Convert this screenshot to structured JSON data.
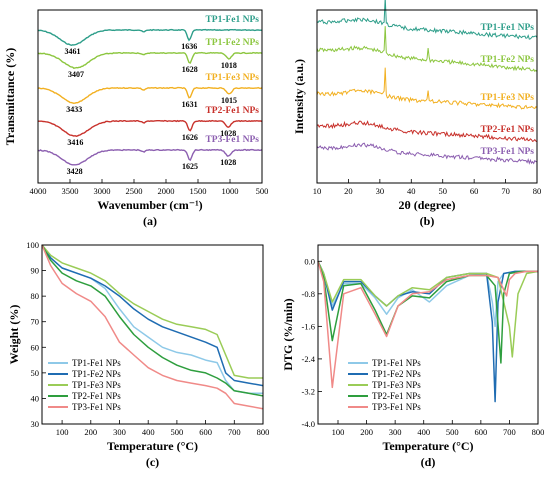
{
  "series_colors": {
    "TP1-Fe1 NPs": "#8EC9E8",
    "TP1-Fe2 NPs": "#1F6CB2",
    "TP1-Fe3 NPs": "#9ACC57",
    "TP2-Fe1 NPs": "#2E9E3E",
    "TP3-Fe1 NPs": "#F08A88"
  },
  "chart_data": [
    {
      "panel": "(a)",
      "type": "line",
      "xlabel": "Wavenumber (cm⁻¹)",
      "ylabel": "Transmittance (%)",
      "xlim": [
        4000,
        500
      ],
      "xticks": [
        "4000",
        "3500",
        "3000",
        "2500",
        "2000",
        "1500",
        "1000",
        "500"
      ],
      "y_ticks_shown": false,
      "series": [
        {
          "name": "TP1-Fe1 NPs",
          "color": "#2E9E8A",
          "peaks": [
            3461,
            1636
          ]
        },
        {
          "name": "TP1-Fe2 NPs",
          "color": "#8CC63F",
          "peaks": [
            3407,
            1628,
            1018
          ]
        },
        {
          "name": "TP1-Fe3 NPs",
          "color": "#F2B021",
          "peaks": [
            3433,
            1631,
            1015
          ]
        },
        {
          "name": "TP2-Fe1 NPs",
          "color": "#C8312B",
          "peaks": [
            3416,
            1626,
            1028
          ]
        },
        {
          "name": "TP3-Fe1 NPs",
          "color": "#8C5FB0",
          "peaks": [
            3428,
            1625,
            1028
          ]
        }
      ]
    },
    {
      "panel": "(b)",
      "type": "line",
      "xlabel": "2θ (degree)",
      "ylabel": "Intensity (a.u.)",
      "xlim": [
        10,
        80
      ],
      "xticks": [
        "10",
        "20",
        "30",
        "40",
        "50",
        "60",
        "70",
        "80"
      ],
      "y_ticks_shown": false,
      "series": [
        {
          "name": "TP1-Fe1 NPs",
          "color": "#2E9E8A",
          "sharp_peaks": [
            31.7
          ]
        },
        {
          "name": "TP1-Fe2 NPs",
          "color": "#8CC63F",
          "sharp_peaks": [
            31.7,
            45.4
          ]
        },
        {
          "name": "TP1-Fe3 NPs",
          "color": "#F2B021",
          "sharp_peaks": [
            31.7,
            45.4
          ]
        },
        {
          "name": "TP2-Fe1 NPs",
          "color": "#C8312B",
          "sharp_peaks": []
        },
        {
          "name": "TP3-Fe1 NPs",
          "color": "#8C5FB0",
          "sharp_peaks": []
        }
      ]
    },
    {
      "panel": "(c)",
      "type": "line",
      "xlabel": "Temperature (°C)",
      "ylabel": "Weight (%)",
      "xlim": [
        30,
        800
      ],
      "ylim": [
        30,
        100
      ],
      "xticks": [
        "100",
        "200",
        "300",
        "400",
        "500",
        "600",
        "700",
        "800"
      ],
      "yticks": [
        "30",
        "40",
        "50",
        "60",
        "70",
        "80",
        "90",
        "100"
      ],
      "legend": "bottom-left",
      "series": [
        {
          "name": "TP1-Fe1 NPs",
          "x": [
            30,
            60,
            100,
            150,
            200,
            250,
            300,
            350,
            400,
            450,
            500,
            550,
            600,
            640,
            670,
            700,
            750,
            800
          ],
          "y": [
            100,
            95,
            91,
            89,
            87,
            83,
            75,
            68,
            64,
            60,
            58,
            57,
            55,
            54,
            47,
            43,
            42,
            42
          ]
        },
        {
          "name": "TP1-Fe2 NPs",
          "x": [
            30,
            60,
            100,
            150,
            200,
            250,
            300,
            350,
            400,
            450,
            500,
            550,
            600,
            640,
            670,
            700,
            750,
            800
          ],
          "y": [
            100,
            95,
            91,
            89,
            87,
            84,
            80,
            75,
            71,
            68,
            66,
            64,
            62,
            60,
            50,
            47,
            46,
            45
          ]
        },
        {
          "name": "TP1-Fe3 NPs",
          "x": [
            30,
            60,
            100,
            150,
            200,
            250,
            300,
            350,
            400,
            450,
            500,
            550,
            600,
            640,
            670,
            700,
            750,
            800
          ],
          "y": [
            100,
            96,
            93,
            91,
            89,
            86,
            81,
            77,
            74,
            71,
            69,
            68,
            67,
            65,
            57,
            49,
            48,
            48
          ]
        },
        {
          "name": "TP2-Fe1 NPs",
          "x": [
            30,
            60,
            100,
            150,
            200,
            250,
            300,
            350,
            400,
            450,
            500,
            550,
            600,
            640,
            670,
            700,
            750,
            800
          ],
          "y": [
            100,
            94,
            89,
            86,
            84,
            80,
            72,
            65,
            60,
            56,
            53,
            51,
            50,
            48,
            46,
            43,
            42,
            41
          ]
        },
        {
          "name": "TP3-Fe1 NPs",
          "x": [
            30,
            60,
            100,
            150,
            200,
            250,
            300,
            350,
            400,
            450,
            500,
            550,
            600,
            640,
            670,
            700,
            750,
            800
          ],
          "y": [
            100,
            92,
            85,
            81,
            78,
            72,
            62,
            57,
            52,
            49,
            47,
            46,
            45,
            44,
            42,
            38,
            37,
            36
          ]
        }
      ]
    },
    {
      "panel": "(d)",
      "type": "line",
      "xlabel": "Temperature (°C)",
      "ylabel": "DTG (%/min)",
      "xlim": [
        30,
        800
      ],
      "ylim": [
        -4.0,
        0.4
      ],
      "xticks": [
        "100",
        "200",
        "300",
        "400",
        "500",
        "600",
        "700",
        "800"
      ],
      "yticks": [
        "0.0",
        "-0.8",
        "-1.6",
        "-2.4",
        "-3.2",
        "-4.0"
      ],
      "legend": "bottom-left",
      "series": [
        {
          "name": "TP1-Fe1 NPs",
          "x": [
            30,
            50,
            80,
            120,
            180,
            230,
            270,
            310,
            360,
            420,
            480,
            560,
            620,
            640,
            650,
            660,
            680,
            720,
            800
          ],
          "y": [
            0.0,
            -0.3,
            -1.1,
            -0.55,
            -0.55,
            -0.9,
            -1.3,
            -0.9,
            -0.7,
            -1.0,
            -0.6,
            -0.35,
            -0.3,
            -1.0,
            -1.6,
            -0.5,
            -0.3,
            -0.25,
            -0.25
          ]
        },
        {
          "name": "TP1-Fe2 NPs",
          "x": [
            30,
            50,
            80,
            120,
            180,
            230,
            270,
            310,
            360,
            420,
            480,
            560,
            620,
            640,
            650,
            660,
            680,
            720,
            800
          ],
          "y": [
            0.0,
            -0.3,
            -1.2,
            -0.5,
            -0.5,
            -0.85,
            -1.1,
            -0.85,
            -0.75,
            -0.8,
            -0.4,
            -0.3,
            -0.3,
            -1.5,
            -3.45,
            -1.0,
            -0.3,
            -0.25,
            -0.25
          ]
        },
        {
          "name": "TP1-Fe3 NPs",
          "x": [
            30,
            50,
            80,
            120,
            180,
            230,
            270,
            310,
            360,
            420,
            480,
            560,
            620,
            660,
            700,
            710,
            730,
            760,
            800
          ],
          "y": [
            0.0,
            -0.3,
            -1.0,
            -0.45,
            -0.45,
            -0.85,
            -1.1,
            -0.85,
            -0.65,
            -0.7,
            -0.4,
            -0.3,
            -0.3,
            -0.4,
            -1.6,
            -2.35,
            -0.8,
            -0.3,
            -0.25
          ]
        },
        {
          "name": "TP2-Fe1 NPs",
          "x": [
            30,
            50,
            80,
            120,
            180,
            230,
            270,
            310,
            360,
            420,
            480,
            560,
            620,
            650,
            670,
            680,
            700,
            740,
            800
          ],
          "y": [
            0.0,
            -0.4,
            -1.95,
            -0.6,
            -0.55,
            -1.2,
            -1.8,
            -1.1,
            -0.85,
            -0.9,
            -0.5,
            -0.35,
            -0.35,
            -0.6,
            -2.5,
            -0.8,
            -0.3,
            -0.25,
            -0.25
          ]
        },
        {
          "name": "TP3-Fe1 NPs",
          "x": [
            30,
            50,
            80,
            120,
            180,
            230,
            270,
            310,
            360,
            420,
            480,
            560,
            620,
            660,
            690,
            700,
            720,
            760,
            800
          ],
          "y": [
            0.0,
            -0.5,
            -3.1,
            -0.8,
            -0.65,
            -1.3,
            -1.85,
            -1.1,
            -0.8,
            -0.75,
            -0.45,
            -0.35,
            -0.35,
            -0.4,
            -0.85,
            -0.45,
            -0.3,
            -0.25,
            -0.25
          ]
        }
      ]
    }
  ]
}
